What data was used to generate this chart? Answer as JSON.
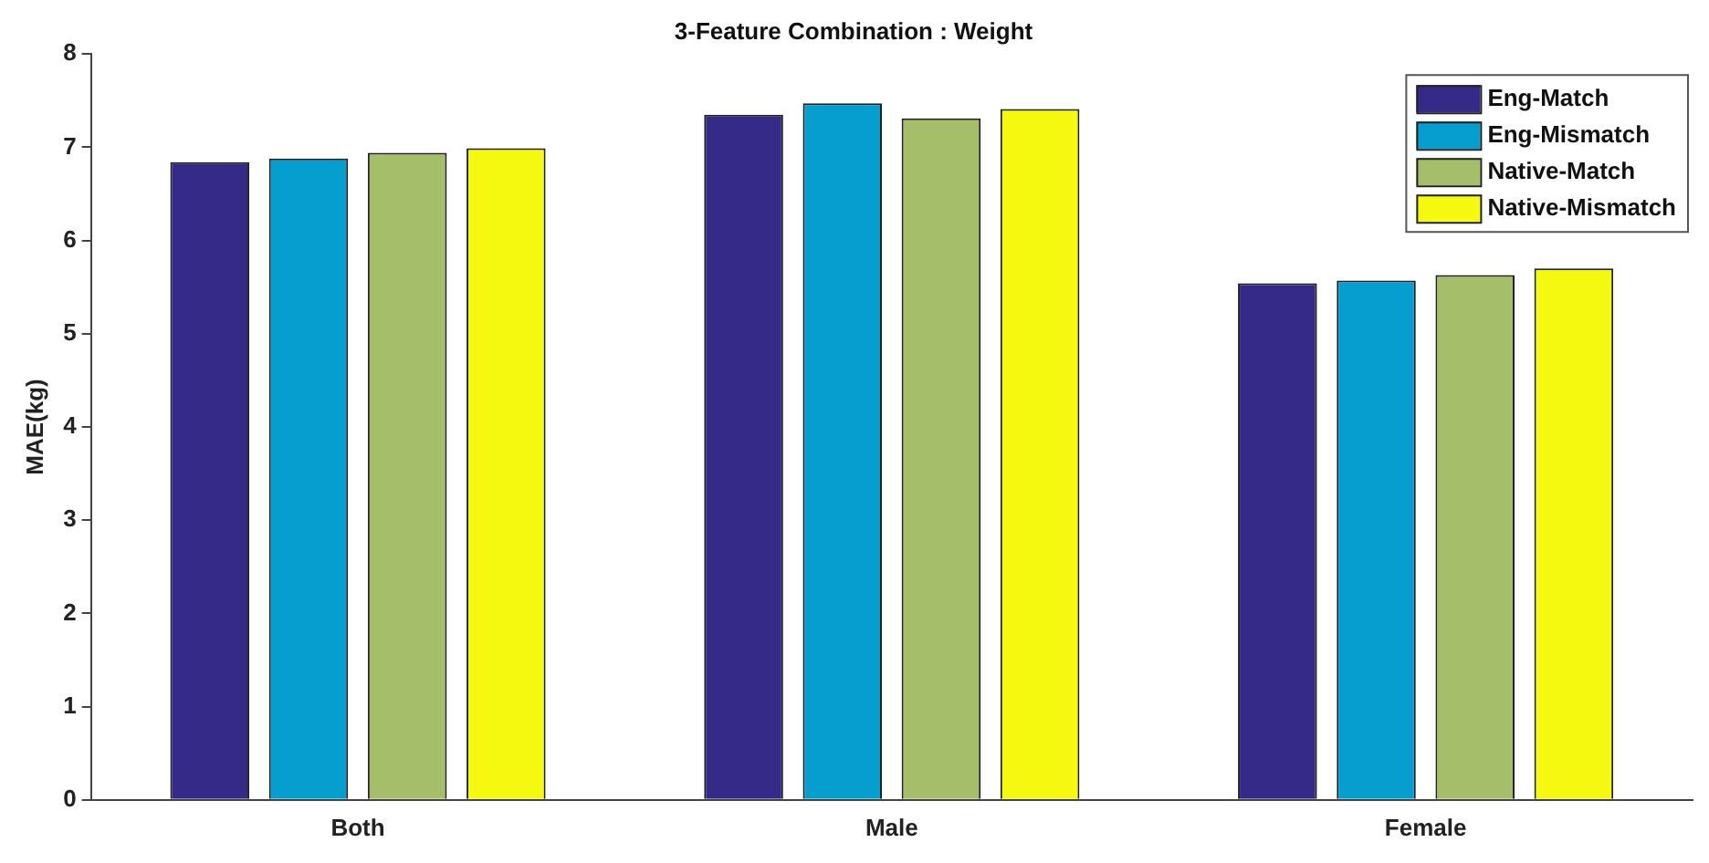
{
  "chart_data": {
    "type": "bar",
    "title": "3-Feature Combination : Weight",
    "ylabel": "MAE(kg)",
    "categories": [
      "Both",
      "Male",
      "Female"
    ],
    "series": [
      {
        "name": "Eng-Match",
        "color": "#352a87",
        "values": [
          6.84,
          7.35,
          5.54
        ]
      },
      {
        "name": "Eng-Mismatch",
        "color": "#069dcf",
        "values": [
          6.88,
          7.47,
          5.57
        ]
      },
      {
        "name": "Native-Match",
        "color": "#a5be6a",
        "values": [
          6.94,
          7.31,
          5.63
        ]
      },
      {
        "name": "Native-Mismatch",
        "color": "#f5f90f",
        "values": [
          6.99,
          7.41,
          5.7
        ]
      }
    ],
    "ylim": [
      0,
      8
    ],
    "yticks": [
      0,
      1,
      2,
      3,
      4,
      5,
      6,
      7,
      8
    ],
    "grid": false,
    "legend": "top right"
  }
}
